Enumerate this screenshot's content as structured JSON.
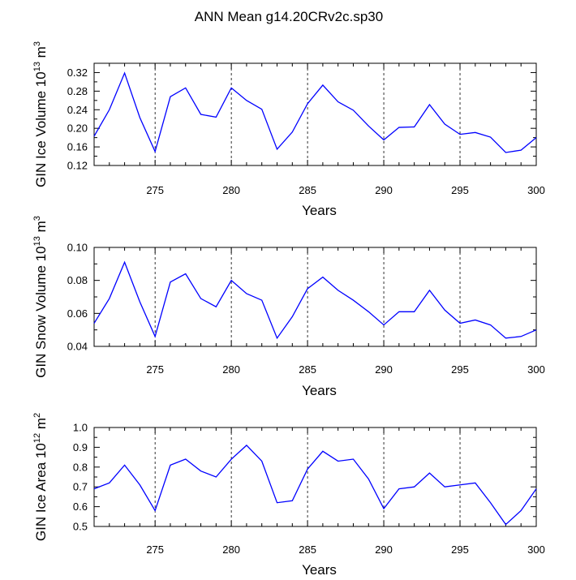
{
  "title": "ANN Mean g14.20CRv2c.sp30",
  "chart_data": [
    {
      "type": "line",
      "ylabel_main": "GIN Ice Volume 10",
      "ylabel_exp": "13",
      "ylabel_unit": " m",
      "ylabel_unit_exp": "3",
      "xlabel": "Years",
      "xlim": [
        271,
        300
      ],
      "ylim": [
        0.12,
        0.34
      ],
      "yticks": [
        "0.12",
        "0.16",
        "0.20",
        "0.24",
        "0.28",
        "0.32"
      ],
      "xticks": [
        "275",
        "280",
        "285",
        "290",
        "295",
        "300"
      ],
      "grid_x": [
        275,
        280,
        285,
        290,
        295
      ],
      "color": "#0000ff",
      "x": [
        271,
        272,
        273,
        274,
        275,
        276,
        277,
        278,
        279,
        280,
        281,
        282,
        283,
        284,
        285,
        286,
        287,
        288,
        289,
        290,
        291,
        292,
        293,
        294,
        295,
        296,
        297,
        298,
        299,
        300
      ],
      "values": [
        0.183,
        0.24,
        0.319,
        0.223,
        0.15,
        0.268,
        0.287,
        0.23,
        0.224,
        0.287,
        0.26,
        0.241,
        0.155,
        0.192,
        0.253,
        0.293,
        0.257,
        0.239,
        0.205,
        0.175,
        0.202,
        0.203,
        0.251,
        0.209,
        0.187,
        0.191,
        0.181,
        0.148,
        0.153,
        0.18
      ]
    },
    {
      "type": "line",
      "ylabel_main": "GIN Snow Volume 10",
      "ylabel_exp": "13",
      "ylabel_unit": " m",
      "ylabel_unit_exp": "3",
      "xlabel": "Years",
      "xlim": [
        271,
        300
      ],
      "ylim": [
        0.04,
        0.1
      ],
      "yticks": [
        "0.04",
        "0.06",
        "0.08",
        "0.10"
      ],
      "xticks": [
        "275",
        "280",
        "285",
        "290",
        "295",
        "300"
      ],
      "grid_x": [
        275,
        280,
        285,
        290,
        295
      ],
      "color": "#0000ff",
      "x": [
        271,
        272,
        273,
        274,
        275,
        276,
        277,
        278,
        279,
        280,
        281,
        282,
        283,
        284,
        285,
        286,
        287,
        288,
        289,
        290,
        291,
        292,
        293,
        294,
        295,
        296,
        297,
        298,
        299,
        300
      ],
      "values": [
        0.054,
        0.069,
        0.091,
        0.067,
        0.046,
        0.079,
        0.084,
        0.069,
        0.064,
        0.08,
        0.072,
        0.068,
        0.045,
        0.058,
        0.075,
        0.082,
        0.074,
        0.068,
        0.061,
        0.053,
        0.061,
        0.061,
        0.074,
        0.062,
        0.054,
        0.056,
        0.053,
        0.045,
        0.046,
        0.05
      ]
    },
    {
      "type": "line",
      "ylabel_main": "GIN Ice Area 10",
      "ylabel_exp": "12",
      "ylabel_unit": " m",
      "ylabel_unit_exp": "2",
      "xlabel": "Years",
      "xlim": [
        271,
        300
      ],
      "ylim": [
        0.5,
        1.0
      ],
      "yticks": [
        "0.5",
        "0.6",
        "0.7",
        "0.8",
        "0.9",
        "1.0"
      ],
      "xticks": [
        "275",
        "280",
        "285",
        "290",
        "295",
        "300"
      ],
      "grid_x": [
        275,
        280,
        285,
        290,
        295
      ],
      "color": "#0000ff",
      "x": [
        271,
        272,
        273,
        274,
        275,
        276,
        277,
        278,
        279,
        280,
        281,
        282,
        283,
        284,
        285,
        286,
        287,
        288,
        289,
        290,
        291,
        292,
        293,
        294,
        295,
        296,
        297,
        298,
        299,
        300
      ],
      "values": [
        0.69,
        0.72,
        0.81,
        0.71,
        0.58,
        0.81,
        0.84,
        0.78,
        0.75,
        0.84,
        0.91,
        0.83,
        0.62,
        0.63,
        0.79,
        0.88,
        0.83,
        0.84,
        0.74,
        0.59,
        0.69,
        0.7,
        0.77,
        0.7,
        0.71,
        0.72,
        0.62,
        0.51,
        0.58,
        0.69
      ]
    }
  ]
}
